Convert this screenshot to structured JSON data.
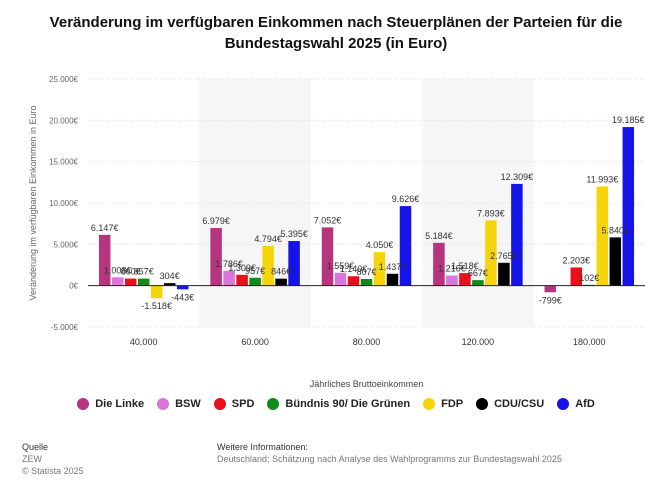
{
  "header": {
    "title_line1": "Veränderung im verfügbaren Einkommen nach Steuerplänen der Parteien für die",
    "title_line2": "Bundestagswahl 2025 (in Euro)"
  },
  "chart_data": {
    "type": "bar",
    "title": "Veränderung im verfügbaren Einkommen nach Steuerplänen der Parteien für die Bundestagswahl 2025 (in Euro)",
    "xlabel": "Jährliches Bruttoeinkommen",
    "ylabel": "Veränderung im verfügbaren Einkommen in Euro",
    "ylim": [
      -5000,
      25000
    ],
    "yticks": [
      -5000,
      0,
      5000,
      10000,
      15000,
      20000,
      25000
    ],
    "ytick_labels": [
      "-5.000€",
      "0€",
      "5.000€",
      "10.000€",
      "15.000€",
      "20.000€",
      "25.000€"
    ],
    "categories": [
      "40.000",
      "60.000",
      "80.000",
      "120.000",
      "180.000"
    ],
    "grid": true,
    "legend_position": "bottom",
    "series": [
      {
        "name": "Die Linke",
        "color": "#b5357f",
        "values": [
          6147,
          6979,
          7052,
          5184,
          -799
        ],
        "labels": [
          "6.147€",
          "6.979€",
          "7.052€",
          "5.184€",
          "-799€"
        ]
      },
      {
        "name": "BSW",
        "color": "#d977d9",
        "values": [
          1008,
          1786,
          1559,
          1216,
          0
        ],
        "labels": [
          "1.008€",
          "1.786€",
          "1.559€",
          "1.216€",
          ""
        ]
      },
      {
        "name": "SPD",
        "color": "#e8101a",
        "values": [
          860,
          1309,
          1140,
          1518,
          2203
        ],
        "labels": [
          "860€",
          "1.309€",
          "1.140€",
          "1.518€",
          "2.203€"
        ]
      },
      {
        "name": "Bündnis 90/ Die Grünen",
        "color": "#118a1c",
        "values": [
          857,
          957,
          807,
          667,
          102
        ],
        "labels": [
          "857€",
          "957€",
          "807€",
          "667€",
          "102€"
        ]
      },
      {
        "name": "FDP",
        "color": "#f5d40a",
        "values": [
          -1518,
          4794,
          4050,
          7893,
          11993
        ],
        "labels": [
          "-1.518€",
          "4.794€",
          "4.050€",
          "7.893€",
          "11.993€"
        ]
      },
      {
        "name": "CDU/CSU",
        "color": "#000000",
        "values": [
          304,
          846,
          1437,
          2765,
          5840
        ],
        "labels": [
          "304€",
          "846€",
          "1.437€",
          "2.765€",
          "5.840€"
        ]
      },
      {
        "name": "AfD",
        "color": "#1414e6",
        "values": [
          -443,
          5395,
          9626,
          12309,
          19185
        ],
        "labels": [
          "-443€",
          "5.395€",
          "9.626€",
          "12.309€",
          "19.185€"
        ]
      }
    ]
  },
  "legend": {
    "items": [
      {
        "label": "Die Linke",
        "color": "#b5357f"
      },
      {
        "label": "BSW",
        "color": "#d977d9"
      },
      {
        "label": "SPD",
        "color": "#e8101a"
      },
      {
        "label": "Bündnis 90/ Die Grünen",
        "color": "#118a1c"
      },
      {
        "label": "FDP",
        "color": "#f5d40a"
      },
      {
        "label": "CDU/CSU",
        "color": "#000000"
      },
      {
        "label": "AfD",
        "color": "#1414e6"
      }
    ]
  },
  "footer": {
    "source_heading": "Quelle",
    "source_name": "ZEW",
    "copyright": "© Statista 2025",
    "info_heading": "Weitere Informationen:",
    "info_text": "Deutschland; Schätzung nach Analyse des Wahlprogramms zur Bundestagswahl 2025"
  }
}
